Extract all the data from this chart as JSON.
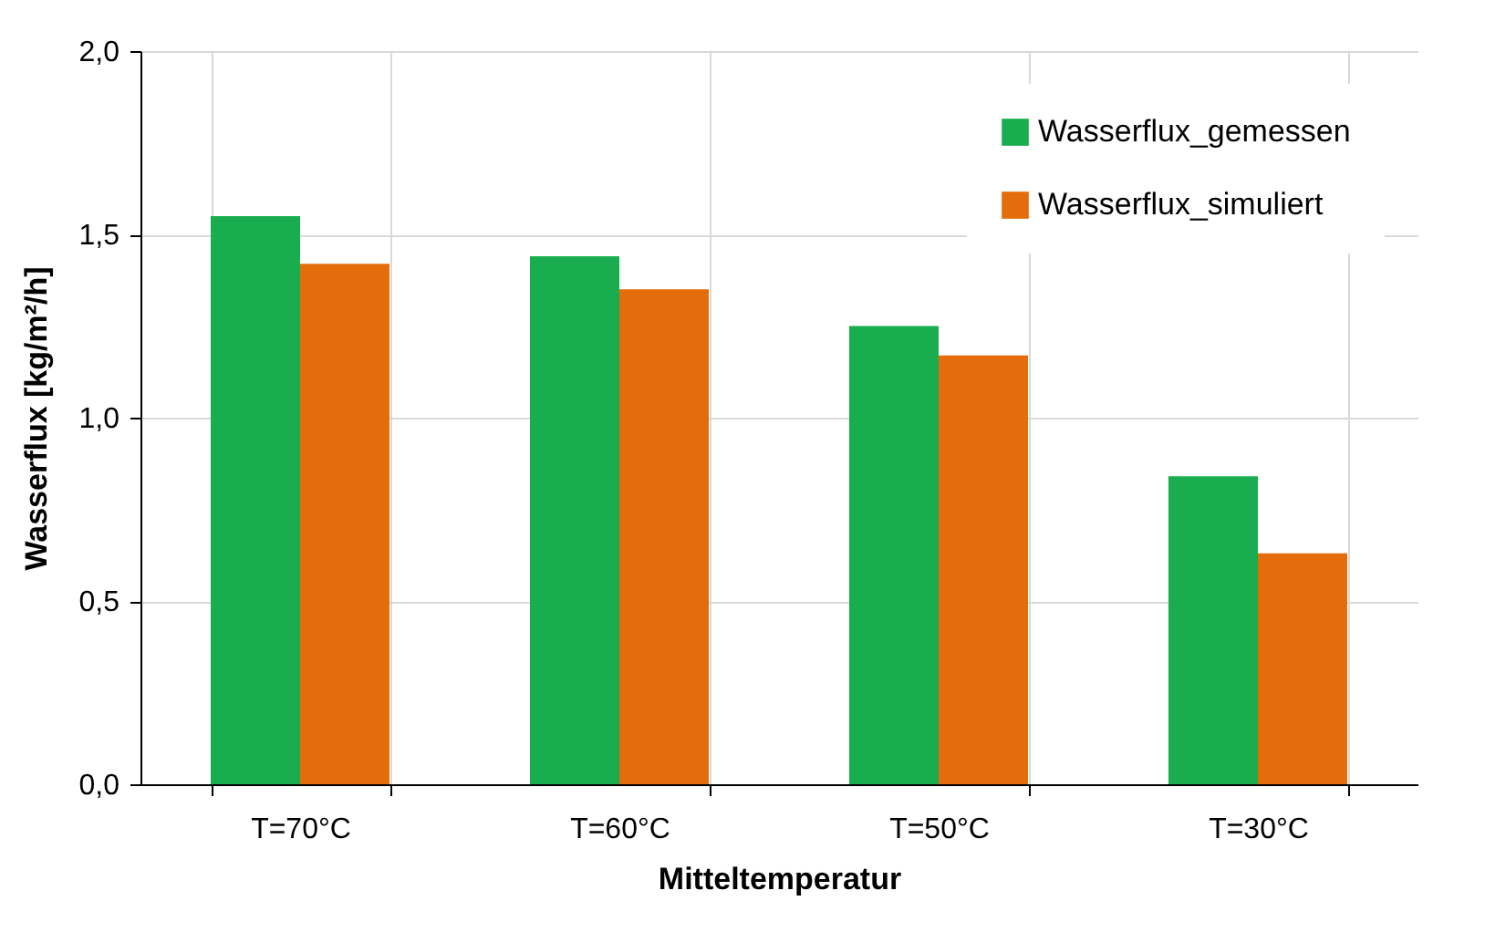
{
  "chart_data": {
    "type": "bar",
    "xlabel": "Mitteltemperatur",
    "ylabel": "Wasserflux [kg/m²/h]",
    "categories": [
      "T=70°C",
      "T=60°C",
      "T=50°C",
      "T=30°C"
    ],
    "series": [
      {
        "name": "Wasserflux_gemessen",
        "color": "#1aad4f",
        "values": [
          1.55,
          1.44,
          1.25,
          0.84
        ]
      },
      {
        "name": "Wasserflux_simuliert",
        "color": "#e46c0a",
        "values": [
          1.42,
          1.35,
          1.17,
          0.63
        ]
      }
    ],
    "ylim": [
      0,
      2
    ],
    "yticks": [
      {
        "value": 0,
        "label": "0,0"
      },
      {
        "value": 0.5,
        "label": "0,5"
      },
      {
        "value": 1,
        "label": "1,0"
      },
      {
        "value": 1.5,
        "label": "1,5"
      },
      {
        "value": 2,
        "label": "2,0"
      }
    ],
    "grid": true,
    "legend": "top right"
  }
}
